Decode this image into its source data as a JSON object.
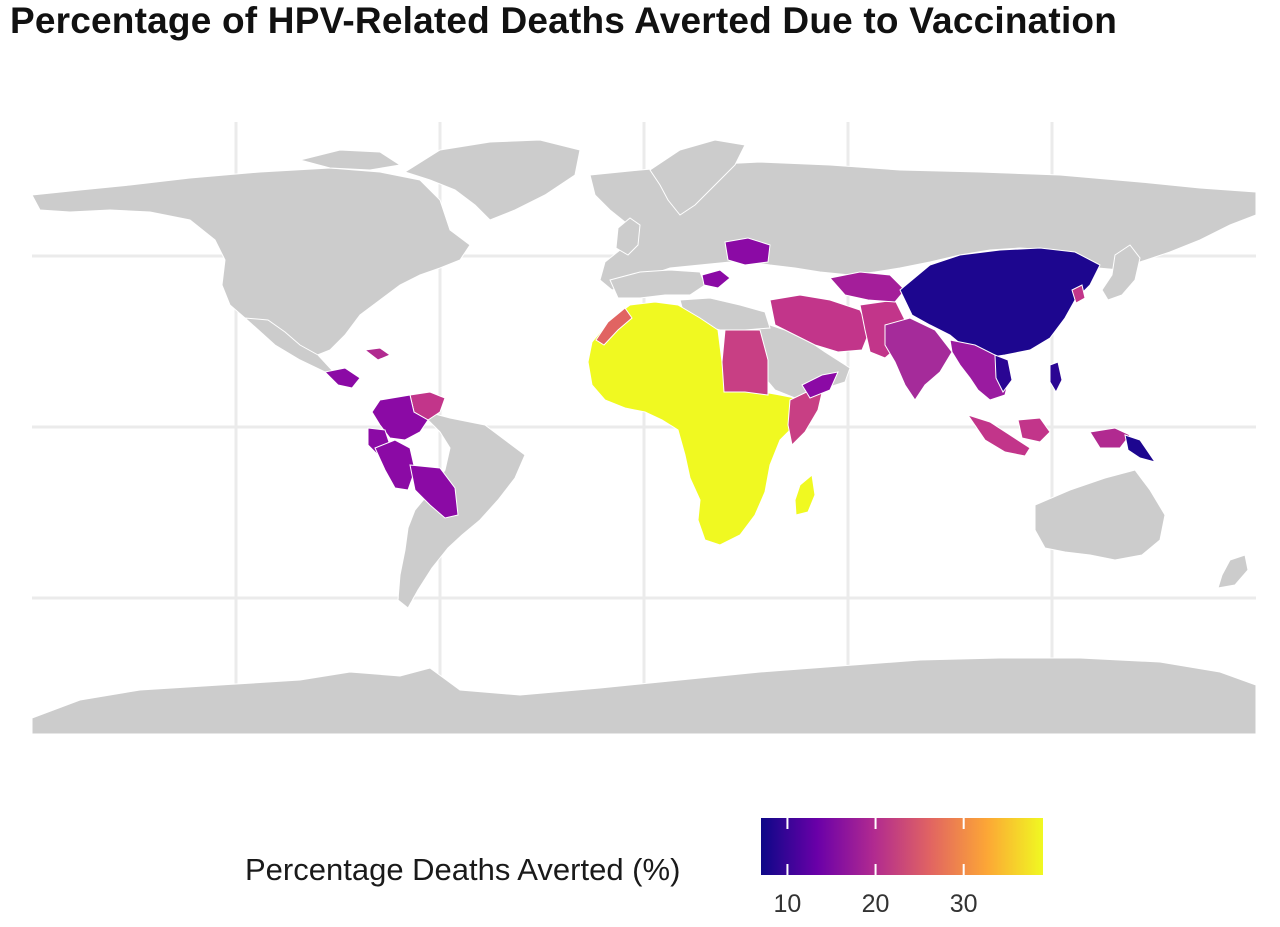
{
  "title": "Percentage of HPV-Related Deaths Averted Due to Vaccination",
  "legend": {
    "title": "Percentage Deaths Averted (%)",
    "ticks": [
      10,
      20,
      30
    ],
    "range": [
      7,
      39
    ],
    "palette": "plasma",
    "colors": [
      "#0d0887",
      "#6a00a8",
      "#b12a90",
      "#e16462",
      "#fca636",
      "#f0f921"
    ]
  },
  "map": {
    "land_color": "#cccccc",
    "grid_color": "#ebebeb",
    "no_data_color": "#cccccc"
  },
  "chart_data": {
    "type": "choropleth",
    "title": "Percentage of HPV-Related Deaths Averted Due to Vaccination",
    "value_label": "Percentage Deaths Averted (%)",
    "scale_range": [
      7,
      39
    ],
    "regions": [
      {
        "name": "Sub-Saharan Africa",
        "value": 39
      },
      {
        "name": "Madagascar",
        "value": 39
      },
      {
        "name": "Morocco",
        "value": 27
      },
      {
        "name": "Sudan",
        "value": 24
      },
      {
        "name": "Somalia",
        "value": 24
      },
      {
        "name": "Iran",
        "value": 24
      },
      {
        "name": "Afghanistan",
        "value": 23
      },
      {
        "name": "Pakistan",
        "value": 23
      },
      {
        "name": "Iraq",
        "value": 22
      },
      {
        "name": "India",
        "value": 20
      },
      {
        "name": "Central Asia",
        "value": 19
      },
      {
        "name": "Yemen",
        "value": 16
      },
      {
        "name": "Ukraine",
        "value": 16
      },
      {
        "name": "Turkey",
        "value": 16
      },
      {
        "name": "Southeast Asia mainland",
        "value": 17
      },
      {
        "name": "Indonesia",
        "value": 20
      },
      {
        "name": "Papua New Guinea",
        "value": 12
      },
      {
        "name": "Philippines",
        "value": 10
      },
      {
        "name": "China",
        "value": 8
      },
      {
        "name": "North Korea",
        "value": 20
      },
      {
        "name": "Vietnam",
        "value": 10
      },
      {
        "name": "Venezuela",
        "value": 19
      },
      {
        "name": "Colombia",
        "value": 16
      },
      {
        "name": "Ecuador",
        "value": 16
      },
      {
        "name": "Peru",
        "value": 15
      },
      {
        "name": "Bolivia",
        "value": 15
      },
      {
        "name": "Central America",
        "value": 16
      },
      {
        "name": "Caribbean",
        "value": 19
      }
    ]
  }
}
